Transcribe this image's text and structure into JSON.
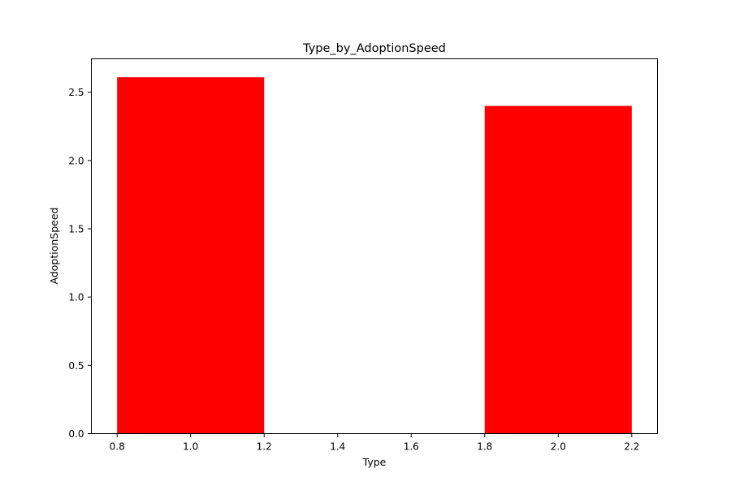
{
  "chart_data": {
    "type": "bar",
    "title": "Type_by_AdoptionSpeed",
    "xlabel": "Type",
    "ylabel": "AdoptionSpeed",
    "bars": [
      {
        "x": 1,
        "width": 0.4,
        "value": 2.61
      },
      {
        "x": 2,
        "width": 0.4,
        "value": 2.4
      }
    ],
    "xlim": [
      0.73,
      2.27
    ],
    "ylim": [
      0,
      2.745
    ],
    "xticks": [
      0.8,
      1.0,
      1.2,
      1.4,
      1.6,
      1.8,
      2.0,
      2.2
    ],
    "xtick_labels": [
      "0.8",
      "1.0",
      "1.2",
      "1.4",
      "1.6",
      "1.8",
      "2.0",
      "2.2"
    ],
    "yticks": [
      0,
      0.5,
      1.0,
      1.5,
      2.0,
      2.5
    ],
    "ytick_labels": [
      "0.0",
      "0.5",
      "1.0",
      "1.5",
      "2.0",
      "2.5"
    ],
    "bar_color": "#ff0000",
    "grid": false,
    "legend": "none"
  }
}
